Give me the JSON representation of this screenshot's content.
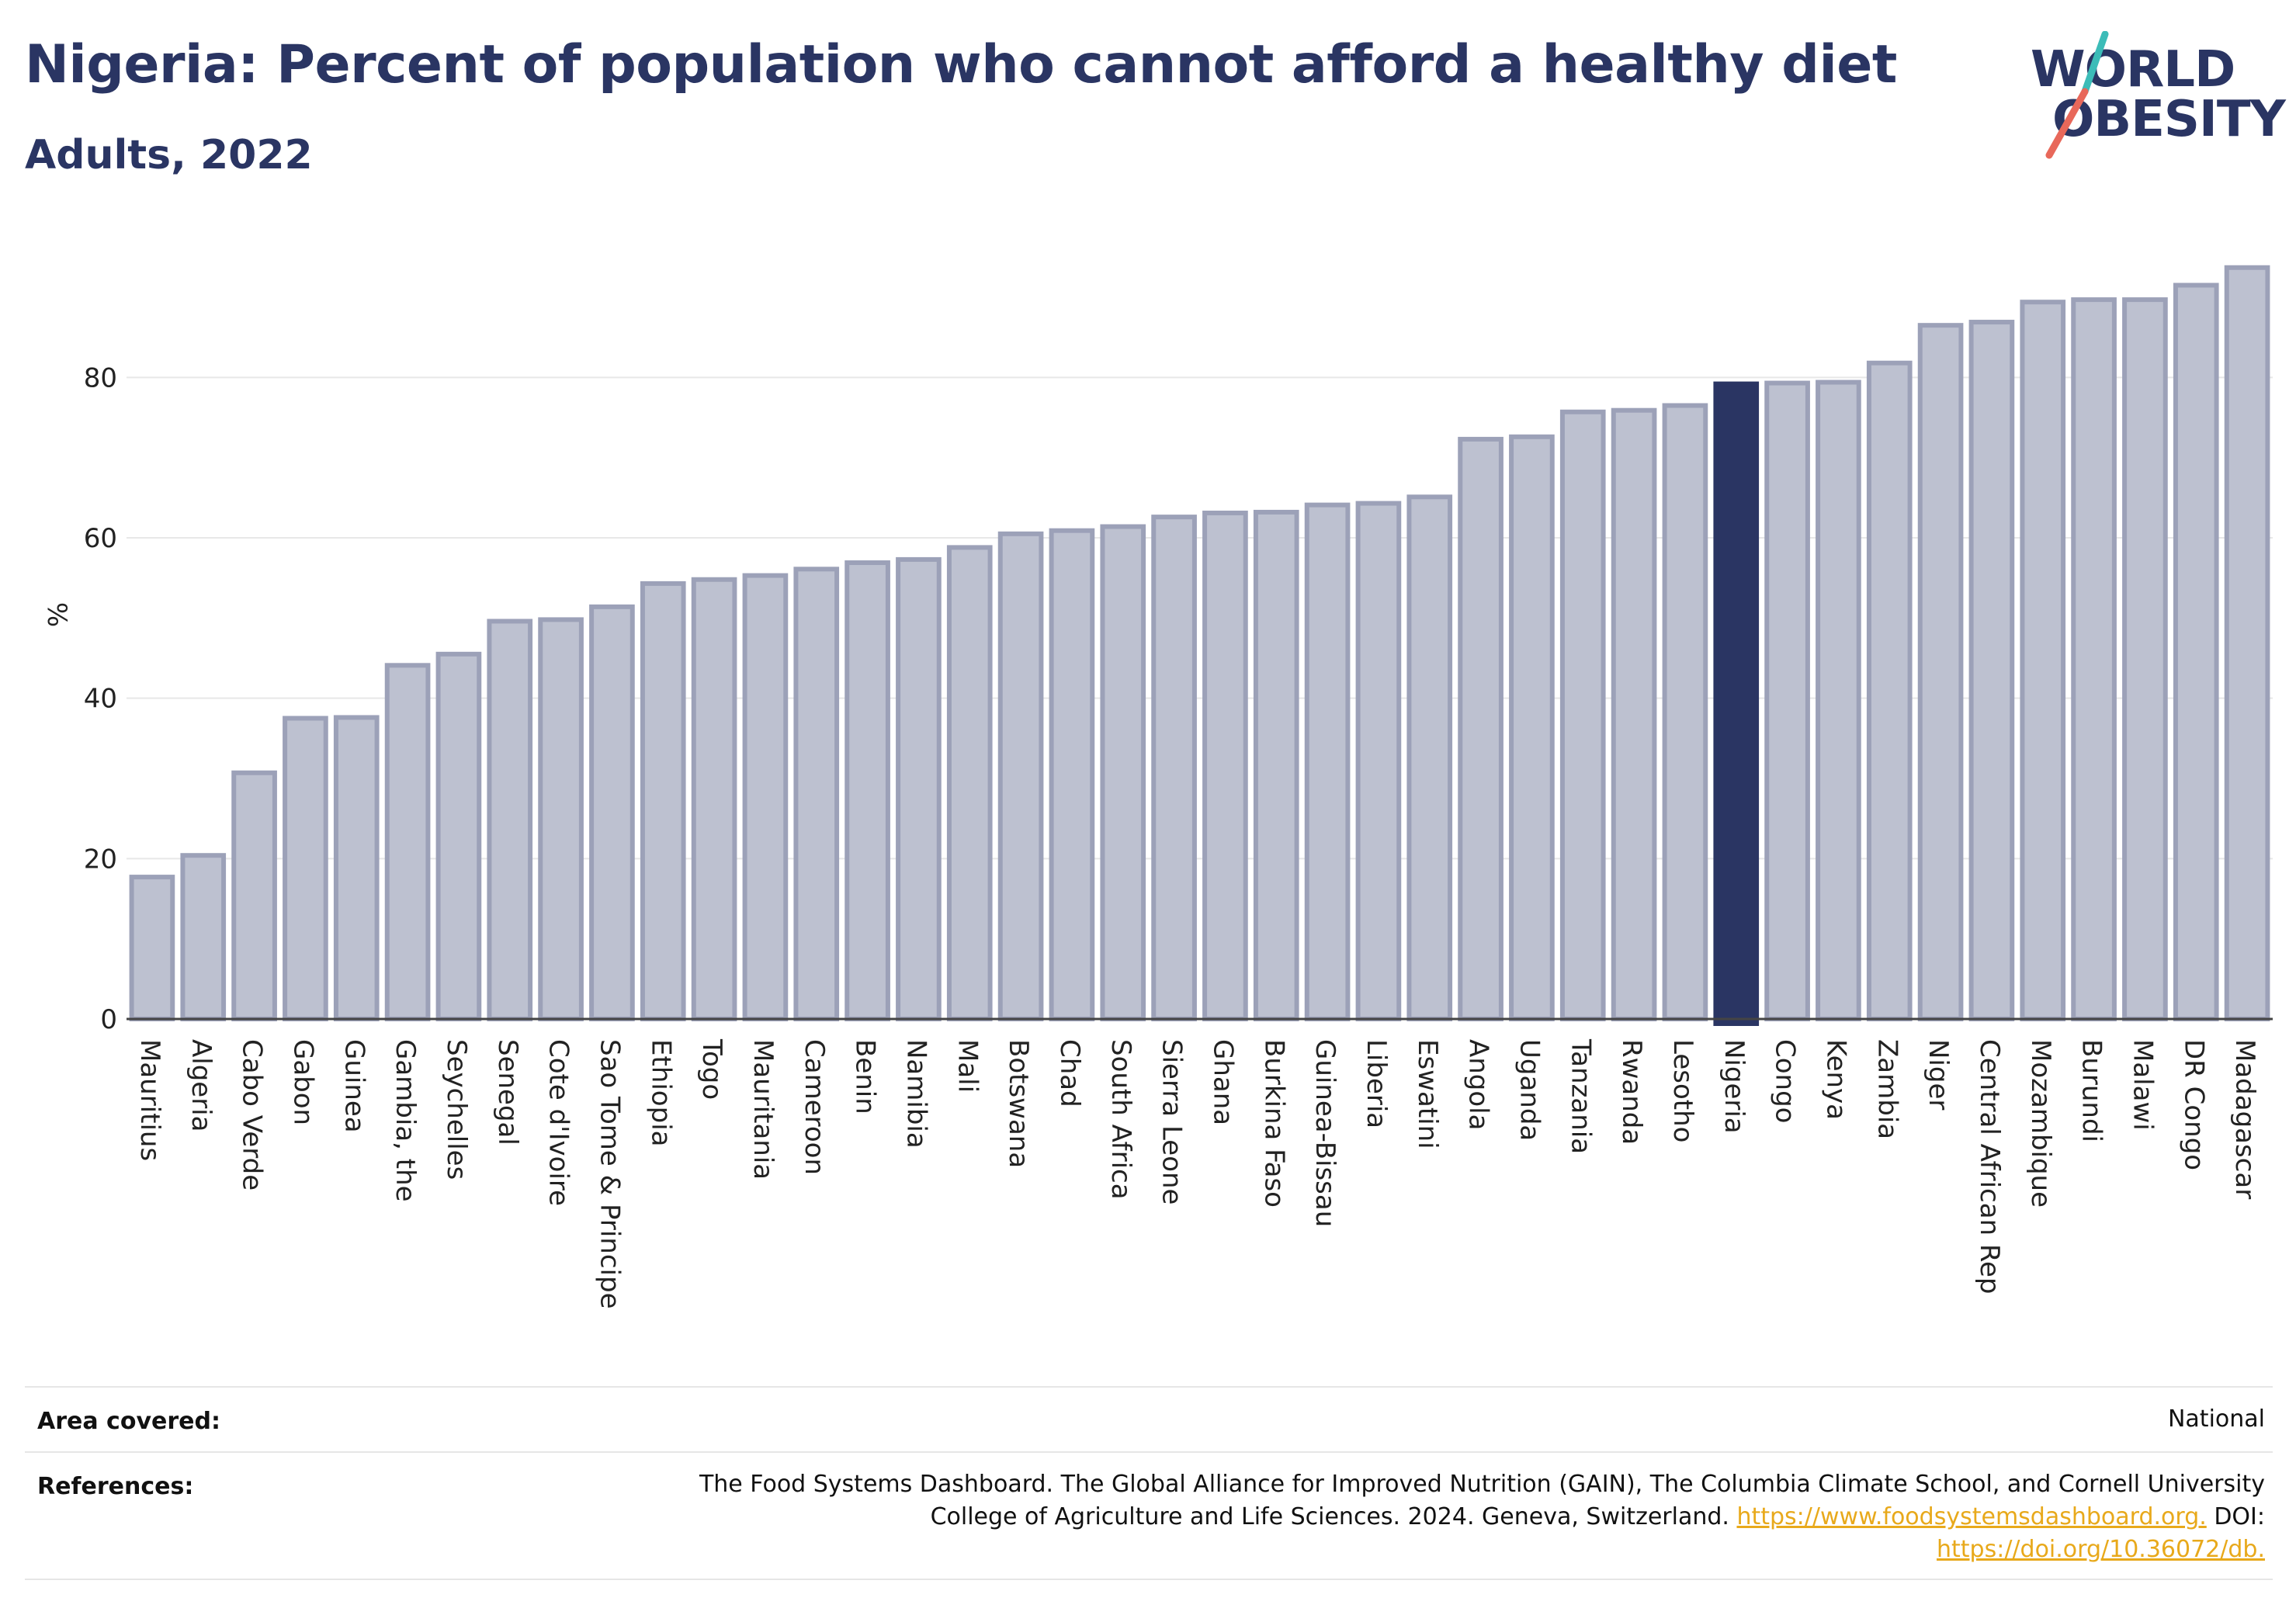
{
  "header": {
    "title": "Nigeria: Percent of population who cannot afford a healthy diet",
    "subtitle": "Adults, 2022"
  },
  "logo": {
    "line1": "WORLD",
    "line2": "OBESITY"
  },
  "colors": {
    "bar": "#bdc1d0",
    "bar_stroke": "#9ca1b8",
    "highlight": "#2a3563",
    "link": "#e8a91b",
    "logo_teal": "#3cbcb8",
    "logo_red": "#e8685a"
  },
  "chart_data": {
    "type": "bar",
    "ylabel": "%",
    "ylim": [
      0,
      96
    ],
    "yticks": [
      0,
      20,
      40,
      60,
      80
    ],
    "grid": true,
    "highlight": "Nigeria",
    "categories": [
      "Mauritius",
      "Algeria",
      "Cabo Verde",
      "Gabon",
      "Guinea",
      "Gambia, the",
      "Seychelles",
      "Senegal",
      "Cote d'Ivoire",
      "Sao Tome & Principe",
      "Ethiopia",
      "Togo",
      "Mauritania",
      "Cameroon",
      "Benin",
      "Namibia",
      "Mali",
      "Botswana",
      "Chad",
      "South Africa",
      "Sierra Leone",
      "Ghana",
      "Burkina Faso",
      "Guinea-Bissau",
      "Liberia",
      "Eswatini",
      "Angola",
      "Uganda",
      "Tanzania",
      "Rwanda",
      "Lesotho",
      "Nigeria",
      "Congo",
      "Kenya",
      "Zambia",
      "Niger",
      "Central African Rep",
      "Mozambique",
      "Burundi",
      "Malawi",
      "DR Congo",
      "Madagascar"
    ],
    "values": [
      17.7,
      20.4,
      30.7,
      37.5,
      37.6,
      44.1,
      45.5,
      49.6,
      49.8,
      51.4,
      54.3,
      54.8,
      55.3,
      56.1,
      56.9,
      57.3,
      58.8,
      60.5,
      60.9,
      61.4,
      62.6,
      63.1,
      63.2,
      64.1,
      64.3,
      65.1,
      72.3,
      72.6,
      75.7,
      75.9,
      76.5,
      79.2,
      79.3,
      79.4,
      81.8,
      86.5,
      86.9,
      89.4,
      89.7,
      89.7,
      91.5,
      93.7
    ]
  },
  "footer": {
    "area_label": "Area covered:",
    "area_value": "National",
    "ref_label": "References:",
    "ref_line1": "The Food Systems Dashboard. The Global Alliance for Improved Nutrition (GAIN), The Columbia Climate School, and Cornell University",
    "ref_line2_text": "College of Agriculture and Life Sciences. 2024. Geneva, Switzerland. ",
    "ref_link1": "https://www.foodsystemsdashboard.org.",
    "ref_doi": " DOI:",
    "ref_link2": "https://doi.org/10.36072/db."
  }
}
